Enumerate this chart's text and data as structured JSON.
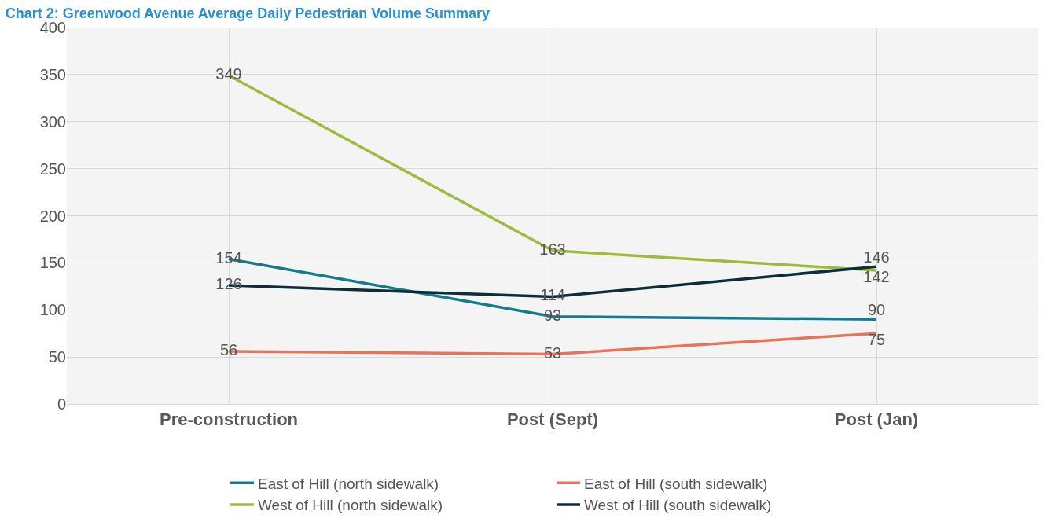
{
  "chart_data": {
    "type": "line",
    "title": "Chart 2: Greenwood Avenue Average Daily Pedestrian Volume Summary",
    "categories": [
      "Pre-construction",
      "Post (Sept)",
      "Post (Jan)"
    ],
    "series": [
      {
        "name": "East of Hill (north sidewalk)",
        "color": "#167a8f",
        "values": [
          154,
          93,
          90
        ]
      },
      {
        "name": "East of Hill (south sidewalk)",
        "color": "#e8735a",
        "values": [
          56,
          53,
          75
        ]
      },
      {
        "name": "West of Hill (north sidewalk)",
        "color": "#9dbb3d",
        "values": [
          349,
          163,
          142
        ]
      },
      {
        "name": "West of Hill (south sidewalk)",
        "color": "#0d2d3a",
        "values": [
          126,
          114,
          146
        ]
      }
    ],
    "ylim": [
      0,
      400
    ],
    "yticks": [
      0,
      50,
      100,
      150,
      200,
      250,
      300,
      350,
      400
    ],
    "grid": true,
    "legend": "bottom",
    "data_labels": true,
    "marker": "none",
    "line_style": "solid"
  }
}
